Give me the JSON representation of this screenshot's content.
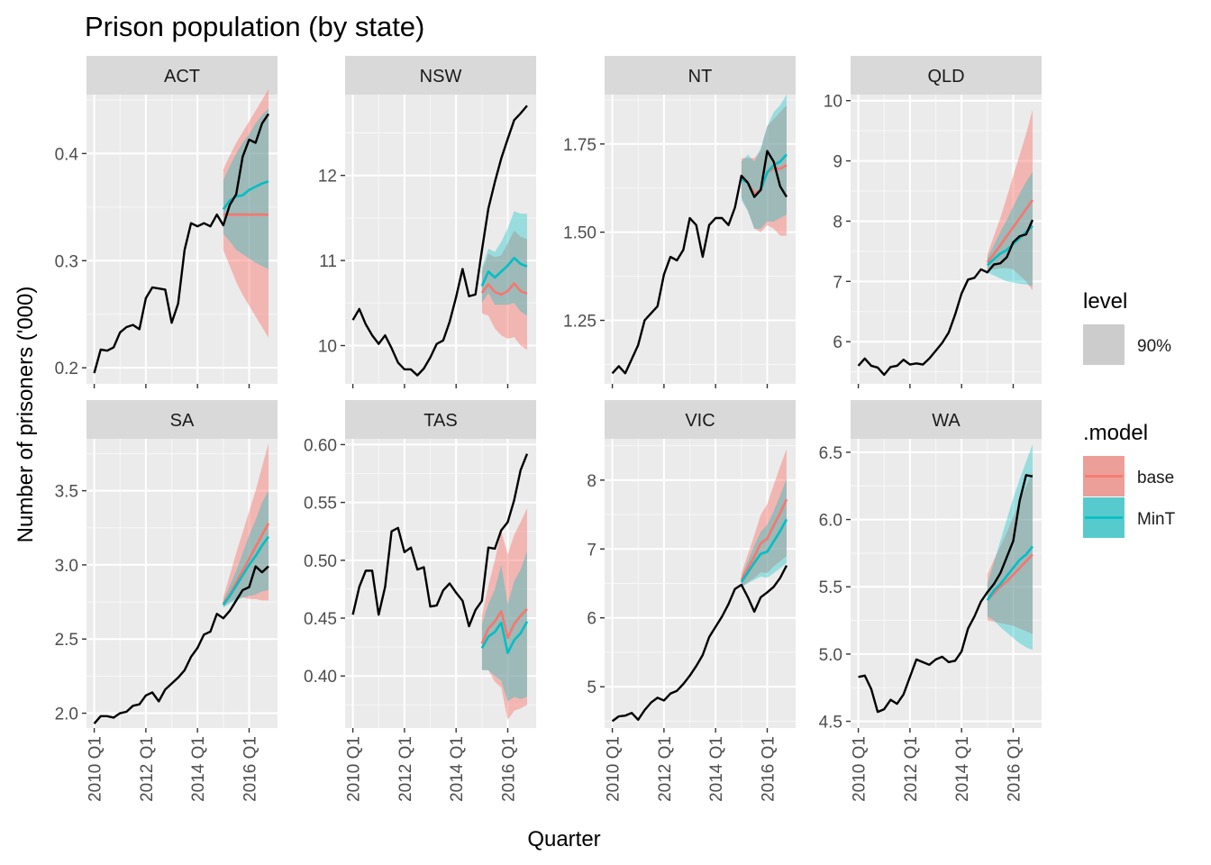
{
  "chart_data": {
    "type": "line",
    "title": "Prison population (by state)",
    "xlabel": "Quarter",
    "ylabel": "Number of prisoners ('000)",
    "x_tick_labels": [
      "2010 Q1",
      "2012 Q1",
      "2014 Q1",
      "2016 Q1"
    ],
    "x_tick_positions": [
      0,
      8,
      16,
      24
    ],
    "history_start": "2010 Q1",
    "forecast_start": "2015 Q1",
    "grid": true,
    "legends": {
      "level": {
        "title": "level",
        "entries": [
          "90%"
        ]
      },
      "model": {
        "title": ".model",
        "entries": [
          {
            "name": "base",
            "color": "#f8766d"
          },
          {
            "name": "MinT",
            "color": "#00bfc4"
          }
        ]
      }
    },
    "colors": {
      "history": "#000000",
      "base": "#f8766d",
      "MinT": "#00bfc4",
      "interval_grey": "#cccccc"
    },
    "panels": [
      {
        "state": "ACT",
        "ylim": [
          0.185,
          0.455
        ],
        "yticks": [
          0.2,
          0.3,
          0.4
        ],
        "ytick_labels": [
          "0.2",
          "0.3",
          "0.4"
        ],
        "actual": [
          0.195,
          0.217,
          0.216,
          0.219,
          0.233,
          0.238,
          0.24,
          0.236,
          0.265,
          0.275,
          0.274,
          0.273,
          0.242,
          0.26,
          0.31,
          0.335,
          0.332,
          0.335,
          0.332,
          0.343,
          0.333,
          0.352,
          0.362,
          0.397,
          0.413,
          0.41,
          0.428,
          0.437
        ],
        "base": {
          "mean": [
            0.343,
            0.343,
            0.343,
            0.343,
            0.343,
            0.343,
            0.343,
            0.343
          ],
          "lo": [
            0.31,
            0.295,
            0.28,
            0.268,
            0.258,
            0.248,
            0.238,
            0.228
          ],
          "hi": [
            0.385,
            0.398,
            0.41,
            0.42,
            0.43,
            0.44,
            0.45,
            0.46
          ]
        },
        "MinT": {
          "mean": [
            0.348,
            0.356,
            0.36,
            0.361,
            0.366,
            0.369,
            0.372,
            0.374
          ],
          "lo": [
            0.325,
            0.318,
            0.31,
            0.306,
            0.302,
            0.298,
            0.295,
            0.292
          ],
          "hi": [
            0.375,
            0.388,
            0.4,
            0.41,
            0.418,
            0.428,
            0.436,
            0.442
          ]
        }
      },
      {
        "state": "NSW",
        "ylim": [
          9.55,
          12.95
        ],
        "yticks": [
          10,
          11,
          12
        ],
        "ytick_labels": [
          "10",
          "11",
          "12"
        ],
        "actual": [
          10.3,
          10.43,
          10.25,
          10.12,
          10.02,
          10.12,
          9.97,
          9.8,
          9.72,
          9.72,
          9.65,
          9.73,
          9.86,
          10.02,
          10.06,
          10.28,
          10.57,
          10.9,
          10.58,
          10.6,
          11.12,
          11.61,
          11.92,
          12.2,
          12.43,
          12.65,
          12.73,
          12.82
        ],
        "base": {
          "mean": [
            10.62,
            10.72,
            10.63,
            10.6,
            10.64,
            10.73,
            10.64,
            10.61
          ],
          "lo": [
            10.38,
            10.35,
            10.2,
            10.12,
            10.08,
            10.1,
            10.0,
            9.95
          ],
          "hi": [
            10.87,
            11.08,
            11.04,
            11.06,
            11.2,
            11.35,
            11.28,
            11.25
          ]
        },
        "MinT": {
          "mean": [
            10.7,
            10.87,
            10.8,
            10.87,
            10.94,
            11.03,
            10.96,
            10.93
          ],
          "lo": [
            10.5,
            10.62,
            10.48,
            10.48,
            10.48,
            10.5,
            10.4,
            10.35
          ],
          "hi": [
            10.92,
            11.14,
            11.1,
            11.22,
            11.38,
            11.58,
            11.55,
            11.55
          ]
        }
      },
      {
        "state": "NT",
        "ylim": [
          1.07,
          1.89
        ],
        "yticks": [
          1.25,
          1.5,
          1.75
        ],
        "ytick_labels": [
          "1.25",
          "1.50",
          "1.75"
        ],
        "actual": [
          1.1,
          1.12,
          1.1,
          1.14,
          1.18,
          1.25,
          1.27,
          1.29,
          1.38,
          1.43,
          1.42,
          1.45,
          1.54,
          1.52,
          1.43,
          1.52,
          1.54,
          1.54,
          1.52,
          1.57,
          1.66,
          1.64,
          1.6,
          1.62,
          1.73,
          1.7,
          1.63,
          1.6
        ],
        "base": {
          "mean": [
            1.66,
            1.64,
            1.61,
            1.62,
            1.67,
            1.68,
            1.68,
            1.69
          ],
          "lo": [
            1.6,
            1.56,
            1.51,
            1.5,
            1.52,
            1.51,
            1.49,
            1.49
          ],
          "hi": [
            1.71,
            1.71,
            1.71,
            1.73,
            1.8,
            1.82,
            1.84,
            1.86
          ]
        },
        "MinT": {
          "mean": [
            1.65,
            1.64,
            1.6,
            1.62,
            1.67,
            1.69,
            1.7,
            1.72
          ],
          "lo": [
            1.59,
            1.56,
            1.51,
            1.51,
            1.53,
            1.53,
            1.54,
            1.55
          ],
          "hi": [
            1.7,
            1.72,
            1.7,
            1.74,
            1.8,
            1.84,
            1.86,
            1.89
          ]
        }
      },
      {
        "state": "QLD",
        "ylim": [
          5.3,
          10.1
        ],
        "yticks": [
          6,
          7,
          8,
          9,
          10
        ],
        "ytick_labels": [
          "6",
          "7",
          "8",
          "9",
          "10"
        ],
        "actual": [
          5.6,
          5.72,
          5.6,
          5.57,
          5.45,
          5.58,
          5.6,
          5.7,
          5.62,
          5.64,
          5.62,
          5.72,
          5.85,
          5.98,
          6.15,
          6.45,
          6.8,
          7.03,
          7.06,
          7.2,
          7.15,
          7.28,
          7.3,
          7.4,
          7.65,
          7.75,
          7.78,
          8.02
        ],
        "base": {
          "mean": [
            7.32,
            7.45,
            7.6,
            7.75,
            7.9,
            8.05,
            8.2,
            8.35
          ],
          "lo": [
            7.2,
            7.2,
            7.22,
            7.22,
            7.2,
            7.1,
            7.0,
            6.85
          ],
          "hi": [
            7.45,
            7.75,
            8.05,
            8.4,
            8.75,
            9.1,
            9.45,
            9.85
          ]
        },
        "MinT": {
          "mean": [
            7.27,
            7.37,
            7.46,
            7.52,
            7.62,
            7.72,
            7.82,
            7.92
          ],
          "lo": [
            7.15,
            7.1,
            7.05,
            7.0,
            6.98,
            6.96,
            6.95,
            6.92
          ],
          "hi": [
            7.39,
            7.6,
            7.82,
            8.02,
            8.24,
            8.46,
            8.65,
            8.82
          ]
        }
      },
      {
        "state": "SA",
        "ylim": [
          1.9,
          3.85
        ],
        "yticks": [
          2.0,
          2.5,
          3.0,
          3.5
        ],
        "ytick_labels": [
          "2.0",
          "2.5",
          "3.0",
          "3.5"
        ],
        "actual": [
          1.93,
          1.98,
          1.98,
          1.97,
          2.0,
          2.01,
          2.05,
          2.06,
          2.12,
          2.14,
          2.08,
          2.16,
          2.2,
          2.24,
          2.29,
          2.38,
          2.44,
          2.53,
          2.55,
          2.67,
          2.64,
          2.69,
          2.76,
          2.83,
          2.85,
          2.99,
          2.95,
          2.99
        ],
        "base": {
          "mean": [
            2.74,
            2.8,
            2.88,
            2.96,
            3.04,
            3.12,
            3.2,
            3.28
          ],
          "lo": [
            2.72,
            2.75,
            2.77,
            2.78,
            2.77,
            2.77,
            2.76,
            2.76
          ],
          "hi": [
            2.78,
            2.93,
            3.08,
            3.22,
            3.36,
            3.5,
            3.66,
            3.82
          ]
        },
        "MinT": {
          "mean": [
            2.73,
            2.79,
            2.86,
            2.93,
            3.0,
            3.06,
            3.13,
            3.19
          ],
          "lo": [
            2.71,
            2.74,
            2.76,
            2.78,
            2.79,
            2.8,
            2.82,
            2.83
          ],
          "hi": [
            2.76,
            2.86,
            2.96,
            3.08,
            3.2,
            3.3,
            3.42,
            3.5
          ]
        }
      },
      {
        "state": "TAS",
        "ylim": [
          0.355,
          0.605
        ],
        "yticks": [
          0.4,
          0.45,
          0.5,
          0.55,
          0.6
        ],
        "ytick_labels": [
          "0.40",
          "0.45",
          "0.50",
          "0.55",
          "0.60"
        ],
        "actual": [
          0.453,
          0.477,
          0.491,
          0.491,
          0.453,
          0.477,
          0.525,
          0.528,
          0.507,
          0.511,
          0.492,
          0.494,
          0.46,
          0.461,
          0.474,
          0.48,
          0.472,
          0.465,
          0.443,
          0.457,
          0.465,
          0.511,
          0.51,
          0.526,
          0.533,
          0.552,
          0.578,
          0.592
        ],
        "base": {
          "mean": [
            0.428,
            0.441,
            0.447,
            0.456,
            0.433,
            0.445,
            0.452,
            0.458
          ],
          "lo": [
            0.405,
            0.405,
            0.395,
            0.39,
            0.362,
            0.37,
            0.372,
            0.375
          ],
          "hi": [
            0.452,
            0.478,
            0.5,
            0.525,
            0.505,
            0.522,
            0.533,
            0.545
          ]
        },
        "MinT": {
          "mean": [
            0.424,
            0.434,
            0.438,
            0.446,
            0.42,
            0.431,
            0.437,
            0.447
          ],
          "lo": [
            0.405,
            0.405,
            0.4,
            0.396,
            0.378,
            0.382,
            0.38,
            0.382
          ],
          "hi": [
            0.445,
            0.462,
            0.475,
            0.496,
            0.462,
            0.482,
            0.492,
            0.508
          ]
        }
      },
      {
        "state": "VIC",
        "ylim": [
          4.4,
          8.6
        ],
        "yticks": [
          5,
          6,
          7,
          8
        ],
        "ytick_labels": [
          "5",
          "6",
          "7",
          "8"
        ],
        "actual": [
          4.5,
          4.57,
          4.58,
          4.62,
          4.52,
          4.66,
          4.77,
          4.84,
          4.8,
          4.9,
          4.94,
          5.04,
          5.16,
          5.3,
          5.46,
          5.72,
          5.87,
          6.02,
          6.2,
          6.42,
          6.48,
          6.3,
          6.09,
          6.3,
          6.37,
          6.45,
          6.58,
          6.76
        ],
        "base": {
          "mean": [
            6.55,
            6.72,
            6.89,
            7.08,
            7.15,
            7.34,
            7.52,
            7.72
          ],
          "lo": [
            6.45,
            6.52,
            6.58,
            6.66,
            6.65,
            6.75,
            6.82,
            6.9
          ],
          "hi": [
            6.65,
            6.92,
            7.2,
            7.5,
            7.65,
            7.93,
            8.2,
            8.45
          ]
        },
        "MinT": {
          "mean": [
            6.52,
            6.66,
            6.8,
            6.93,
            6.96,
            7.11,
            7.26,
            7.43
          ],
          "lo": [
            6.45,
            6.5,
            6.55,
            6.6,
            6.58,
            6.65,
            6.72,
            6.8
          ],
          "hi": [
            6.6,
            6.82,
            7.05,
            7.25,
            7.35,
            7.55,
            7.78,
            8.02
          ]
        }
      },
      {
        "state": "WA",
        "ylim": [
          4.45,
          6.6
        ],
        "yticks": [
          4.5,
          5.0,
          5.5,
          6.0,
          6.5
        ],
        "ytick_labels": [
          "4.5",
          "5.0",
          "5.5",
          "6.0",
          "6.5"
        ],
        "actual": [
          4.83,
          4.84,
          4.74,
          4.57,
          4.59,
          4.66,
          4.63,
          4.7,
          4.83,
          4.96,
          4.94,
          4.92,
          4.96,
          4.98,
          4.94,
          4.95,
          5.02,
          5.19,
          5.28,
          5.39,
          5.46,
          5.52,
          5.6,
          5.72,
          5.84,
          6.14,
          6.33,
          6.32
        ],
        "base": {
          "mean": [
            5.4,
            5.45,
            5.5,
            5.54,
            5.59,
            5.64,
            5.69,
            5.74
          ],
          "lo": [
            5.25,
            5.24,
            5.23,
            5.22,
            5.21,
            5.19,
            5.17,
            5.15
          ],
          "hi": [
            5.59,
            5.7,
            5.8,
            5.9,
            6.02,
            6.13,
            6.25,
            6.35
          ]
        },
        "MinT": {
          "mean": [
            5.4,
            5.47,
            5.52,
            5.58,
            5.64,
            5.7,
            5.74,
            5.8
          ],
          "lo": [
            5.28,
            5.25,
            5.2,
            5.16,
            5.12,
            5.08,
            5.05,
            5.03
          ],
          "hi": [
            5.52,
            5.68,
            5.84,
            6.0,
            6.16,
            6.3,
            6.43,
            6.56
          ]
        }
      }
    ]
  }
}
